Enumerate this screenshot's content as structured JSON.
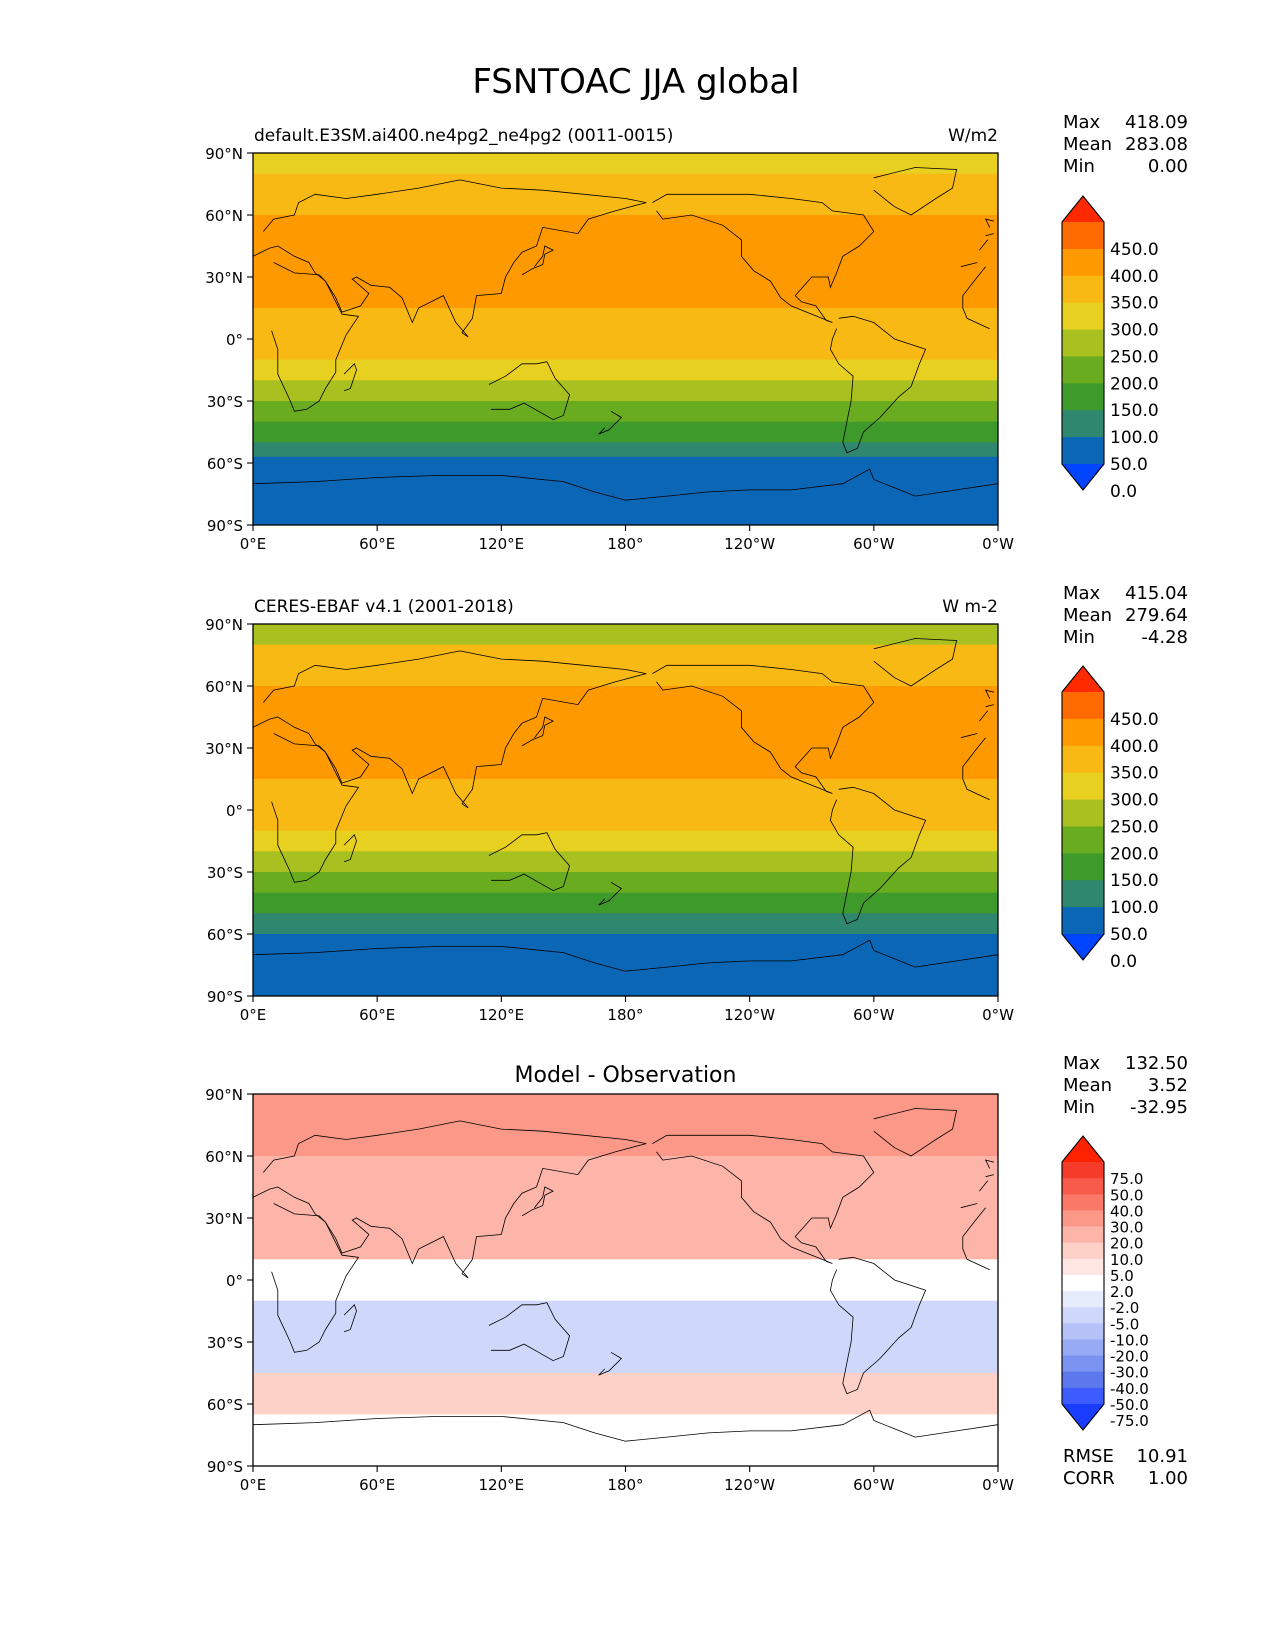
{
  "figure": {
    "title": "FSNTOAC JJA global"
  },
  "lat_ticks": [
    "90°N",
    "60°N",
    "30°N",
    "0°",
    "30°S",
    "60°S",
    "90°S"
  ],
  "lon_ticks": [
    "0°E",
    "60°E",
    "120°E",
    "180°",
    "120°W",
    "60°W",
    "0°W"
  ],
  "panels": [
    {
      "title_left": "default.E3SM.ai400.ne4pg2_ne4pg2 (0011-0015)",
      "title_center": "",
      "units": "W/m2",
      "stats": [
        {
          "label": "Max",
          "value": "418.09"
        },
        {
          "label": "Mean",
          "value": "283.08"
        },
        {
          "label": "Min",
          "value": "0.00"
        }
      ],
      "colorbar": {
        "levels": [
          "450.0",
          "400.0",
          "350.0",
          "300.0",
          "250.0",
          "200.0",
          "150.0",
          "100.0",
          "50.0",
          "0.0"
        ],
        "colors": [
          "#ff2a00",
          "#ff6a00",
          "#ff9900",
          "#f8b915",
          "#e8d020",
          "#a8c020",
          "#6aac20",
          "#3e9a2a",
          "#2f8770",
          "#0b66b6",
          "#0044ff"
        ]
      }
    },
    {
      "title_left": "CERES-EBAF v4.1 (2001-2018)",
      "title_center": "",
      "units": "W m-2",
      "stats": [
        {
          "label": "Max",
          "value": "415.04"
        },
        {
          "label": "Mean",
          "value": "279.64"
        },
        {
          "label": "Min",
          "value": "-4.28"
        }
      ],
      "colorbar": {
        "levels": [
          "450.0",
          "400.0",
          "350.0",
          "300.0",
          "250.0",
          "200.0",
          "150.0",
          "100.0",
          "50.0",
          "0.0"
        ],
        "colors": [
          "#ff2a00",
          "#ff6a00",
          "#ff9900",
          "#f8b915",
          "#e8d020",
          "#a8c020",
          "#6aac20",
          "#3e9a2a",
          "#2f8770",
          "#0b66b6",
          "#0044ff"
        ]
      }
    },
    {
      "title_left": "",
      "title_center": "Model - Observation",
      "units": "",
      "stats": [
        {
          "label": "Max",
          "value": "132.50"
        },
        {
          "label": "Mean",
          "value": "3.52"
        },
        {
          "label": "Min",
          "value": "-32.95"
        }
      ],
      "colorbar": {
        "levels": [
          "75.0",
          "50.0",
          "40.0",
          "30.0",
          "20.0",
          "10.0",
          "5.0",
          "2.0",
          "-2.0",
          "-5.0",
          "-10.0",
          "-20.0",
          "-30.0",
          "-40.0",
          "-50.0",
          "-75.0"
        ],
        "colors": [
          "#ff2200",
          "#f53c2a",
          "#f7594a",
          "#f97868",
          "#fb9888",
          "#fcb5a8",
          "#fdd0c8",
          "#fee7e2",
          "#ffffff",
          "#e7ecfd",
          "#cfd8fb",
          "#b4c2f8",
          "#97aaf4",
          "#7a92f0",
          "#5c78ec",
          "#3c5cff",
          "#1a3cff"
        ]
      },
      "extra_stats": [
        {
          "label": "RMSE",
          "value": "10.91"
        },
        {
          "label": "CORR",
          "value": "1.00"
        }
      ]
    }
  ],
  "chart_data": [
    {
      "type": "heatmap",
      "title": "default.E3SM.ai400.ne4pg2_ne4pg2 (0011-0015)",
      "units": "W/m2",
      "xlabel": "",
      "ylabel": "",
      "xlim": [
        0,
        360
      ],
      "ylim": [
        -90,
        90
      ],
      "latitude_bands": [
        {
          "lat_range": [
            80,
            90
          ],
          "value": 275
        },
        {
          "lat_range": [
            60,
            80
          ],
          "value": 330
        },
        {
          "lat_range": [
            30,
            60
          ],
          "value": 375
        },
        {
          "lat_range": [
            15,
            30
          ],
          "value": 355
        },
        {
          "lat_range": [
            0,
            15
          ],
          "value": 340
        },
        {
          "lat_range": [
            -10,
            0
          ],
          "value": 320
        },
        {
          "lat_range": [
            -20,
            -10
          ],
          "value": 280
        },
        {
          "lat_range": [
            -30,
            -20
          ],
          "value": 240
        },
        {
          "lat_range": [
            -40,
            -30
          ],
          "value": 175
        },
        {
          "lat_range": [
            -50,
            -40
          ],
          "value": 125
        },
        {
          "lat_range": [
            -57,
            -50
          ],
          "value": 80
        },
        {
          "lat_range": [
            -85,
            -57
          ],
          "value": 30
        },
        {
          "lat_range": [
            -90,
            -85
          ],
          "value": 0
        }
      ],
      "stats": {
        "max": 418.09,
        "mean": 283.08,
        "min": 0.0
      }
    },
    {
      "type": "heatmap",
      "title": "CERES-EBAF v4.1 (2001-2018)",
      "units": "W m-2",
      "xlabel": "",
      "ylabel": "",
      "xlim": [
        0,
        360
      ],
      "ylim": [
        -90,
        90
      ],
      "latitude_bands": [
        {
          "lat_range": [
            80,
            90
          ],
          "value": 240
        },
        {
          "lat_range": [
            60,
            80
          ],
          "value": 310
        },
        {
          "lat_range": [
            30,
            60
          ],
          "value": 365
        },
        {
          "lat_range": [
            15,
            30
          ],
          "value": 350
        },
        {
          "lat_range": [
            0,
            15
          ],
          "value": 330
        },
        {
          "lat_range": [
            -10,
            0
          ],
          "value": 310
        },
        {
          "lat_range": [
            -20,
            -10
          ],
          "value": 275
        },
        {
          "lat_range": [
            -30,
            -20
          ],
          "value": 230
        },
        {
          "lat_range": [
            -40,
            -30
          ],
          "value": 170
        },
        {
          "lat_range": [
            -50,
            -40
          ],
          "value": 120
        },
        {
          "lat_range": [
            -60,
            -50
          ],
          "value": 75
        },
        {
          "lat_range": [
            -72,
            -60
          ],
          "value": 30
        },
        {
          "lat_range": [
            -90,
            -72
          ],
          "value": 0
        }
      ],
      "stats": {
        "max": 415.04,
        "mean": 279.64,
        "min": -4.28
      }
    },
    {
      "type": "heatmap",
      "title": "Model - Observation",
      "units": "",
      "xlabel": "",
      "ylabel": "",
      "xlim": [
        0,
        360
      ],
      "ylim": [
        -90,
        90
      ],
      "latitude_bands": [
        {
          "lat_range": [
            60,
            90
          ],
          "value": 25
        },
        {
          "lat_range": [
            10,
            60
          ],
          "value": 10
        },
        {
          "lat_range": [
            -10,
            10
          ],
          "value": 1
        },
        {
          "lat_range": [
            -30,
            -10
          ],
          "value": -8
        },
        {
          "lat_range": [
            -45,
            -30
          ],
          "value": -10
        },
        {
          "lat_range": [
            -65,
            -45
          ],
          "value": 5
        },
        {
          "lat_range": [
            -90,
            -65
          ],
          "value": 0
        }
      ],
      "stats": {
        "max": 132.5,
        "mean": 3.52,
        "min": -32.95,
        "rmse": 10.91,
        "corr": 1.0
      }
    }
  ]
}
